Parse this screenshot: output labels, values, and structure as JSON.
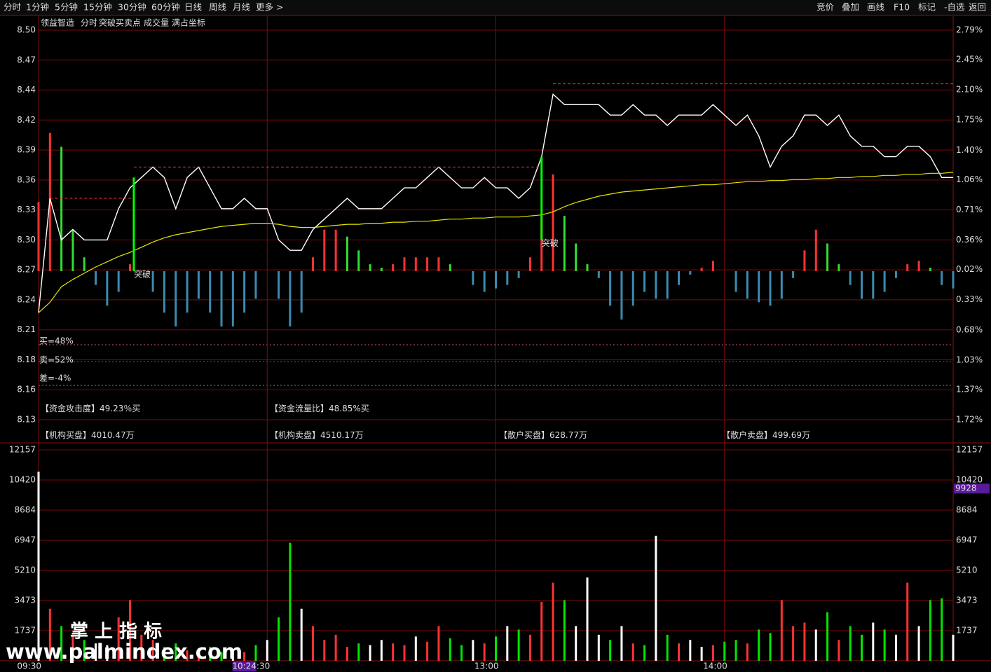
{
  "toolbar": {
    "left": [
      "分时",
      "1分钟",
      "5分钟",
      "15分钟",
      "30分钟",
      "60分钟",
      "日线",
      "周线",
      "月线",
      "更多 >"
    ],
    "right": [
      "竞价",
      "叠加",
      "画线",
      "F10",
      "标记",
      "-自选",
      "返回"
    ]
  },
  "header": {
    "stock": "领益智造",
    "items": [
      "突破买卖点",
      "成交量",
      "满占坐标"
    ]
  },
  "stats": [
    "买=48%",
    "卖=52%",
    "差=-4%"
  ],
  "info": [
    {
      "label": "【资金攻击度】",
      "value": "49.23％买",
      "color": "#33e0e0"
    },
    {
      "label": "【资金流量比】",
      "value": "48.85%买",
      "color": "#33e0e0"
    },
    {
      "label": "【机构买盘】",
      "value": "4010.47万",
      "color": "#ff3232"
    },
    {
      "label": "【机构卖盘】",
      "value": "4510.17万",
      "color": "#33dd33"
    },
    {
      "label": "【散户买盘】",
      "value": "628.77万",
      "color": "#ff3232"
    },
    {
      "label": "【散户卖盘】",
      "value": "499.69万",
      "color": "#33dd33"
    }
  ],
  "watermark": [
    "掌 上 指 标",
    "www.palmindex.com"
  ],
  "chart_data": [
    {
      "type": "line",
      "x": [
        "09:30",
        "09:33",
        "09:36",
        "09:39",
        "09:42",
        "09:45",
        "09:48",
        "09:51",
        "09:54",
        "09:57",
        "10:00",
        "10:03",
        "10:06",
        "10:09",
        "10:12",
        "10:15",
        "10:18",
        "10:21",
        "10:24",
        "10:27",
        "10:30",
        "10:33",
        "10:36",
        "10:39",
        "10:42",
        "10:45",
        "10:48",
        "10:51",
        "10:54",
        "10:57",
        "11:00",
        "11:03",
        "11:06",
        "11:09",
        "11:12",
        "11:15",
        "11:18",
        "11:21",
        "11:24",
        "11:27",
        "11:30",
        "13:03",
        "13:06",
        "13:09",
        "13:12",
        "13:15",
        "13:18",
        "13:21",
        "13:24",
        "13:27",
        "13:30",
        "13:33",
        "13:36",
        "13:39",
        "13:42",
        "13:45",
        "13:48",
        "13:51",
        "13:54",
        "13:57",
        "14:00",
        "14:03",
        "14:06",
        "14:09",
        "14:12",
        "14:15",
        "14:18",
        "14:21",
        "14:24",
        "14:27",
        "14:30",
        "14:33",
        "14:36",
        "14:39",
        "14:42",
        "14:45",
        "14:48",
        "14:51",
        "14:54",
        "14:57",
        "15:00"
      ],
      "series": [
        {
          "name": "分时",
          "color": "#ffffff",
          "values": [
            8.23,
            8.34,
            8.3,
            8.31,
            8.3,
            8.3,
            8.3,
            8.33,
            8.35,
            8.36,
            8.37,
            8.36,
            8.33,
            8.36,
            8.37,
            8.35,
            8.33,
            8.33,
            8.34,
            8.33,
            8.33,
            8.3,
            8.29,
            8.29,
            8.31,
            8.32,
            8.33,
            8.34,
            8.33,
            8.33,
            8.33,
            8.34,
            8.35,
            8.35,
            8.36,
            8.37,
            8.36,
            8.35,
            8.35,
            8.36,
            8.35,
            8.35,
            8.34,
            8.35,
            8.38,
            8.44,
            8.43,
            8.43,
            8.43,
            8.43,
            8.42,
            8.42,
            8.43,
            8.42,
            8.42,
            8.41,
            8.42,
            8.42,
            8.42,
            8.43,
            8.42,
            8.41,
            8.42,
            8.4,
            8.37,
            8.39,
            8.4,
            8.42,
            8.42,
            8.41,
            8.42,
            8.4,
            8.39,
            8.39,
            8.38,
            8.38,
            8.39,
            8.39,
            8.38,
            8.36,
            8.36
          ]
        },
        {
          "color": "#e6e600",
          "values": [
            8.23,
            8.24,
            8.255,
            8.262,
            8.268,
            8.274,
            8.279,
            8.284,
            8.288,
            8.293,
            8.298,
            8.302,
            8.305,
            8.307,
            8.309,
            8.311,
            8.313,
            8.314,
            8.315,
            8.316,
            8.316,
            8.315,
            8.313,
            8.312,
            8.312,
            8.313,
            8.314,
            8.315,
            8.315,
            8.316,
            8.316,
            8.317,
            8.317,
            8.318,
            8.318,
            8.319,
            8.32,
            8.32,
            8.321,
            8.321,
            8.322,
            8.322,
            8.322,
            8.323,
            8.324,
            8.327,
            8.332,
            8.336,
            8.339,
            8.342,
            8.344,
            8.346,
            8.347,
            8.348,
            8.349,
            8.35,
            8.351,
            8.352,
            8.353,
            8.353,
            8.354,
            8.355,
            8.356,
            8.356,
            8.357,
            8.357,
            8.358,
            8.358,
            8.359,
            8.359,
            8.36,
            8.36,
            8.361,
            8.361,
            8.362,
            8.362,
            8.363,
            8.363,
            8.364,
            8.364,
            8.365
          ]
        },
        {
          "type": "bar",
          "axis": "y2",
          "values": [
            0.8,
            1.6,
            1.44,
            0.48,
            0.16,
            -0.16,
            -0.4,
            -0.24,
            0.08,
            0,
            -0.24,
            -0.48,
            -0.64,
            -0.48,
            -0.32,
            -0.48,
            -0.64,
            -0.64,
            -0.48,
            -0.32,
            0,
            -0.32,
            -0.64,
            -0.48,
            0.16,
            0.48,
            0.48,
            0.4,
            0.24,
            0.08,
            0.04,
            0.08,
            0.16,
            0.16,
            0.16,
            0.16,
            0.08,
            0,
            -0.16,
            -0.24,
            -0.2,
            -0.16,
            -0.08,
            0.16,
            0.64,
            1.12,
            0.64,
            0.32,
            0.08,
            -0.08,
            -0.4,
            -0.56,
            -0.4,
            -0.24,
            -0.32,
            -0.32,
            -0.16,
            -0.04,
            0.04,
            0.12,
            0,
            -0.24,
            -0.32,
            -0.36,
            -0.4,
            -0.32,
            -0.08,
            0.24,
            0.48,
            0.32,
            0.08,
            -0.16,
            -0.32,
            -0.32,
            -0.24,
            -0.08,
            0.08,
            0.12,
            0.04,
            -0.16,
            -0.2
          ]
        }
      ],
      "ylim": [
        8.1272,
        8.5016
      ],
      "yticks": [
        {
          "value": 8.5016,
          "label": "8.50"
        },
        {
          "value": 8.4728,
          "label": "8.47"
        },
        {
          "value": 8.444,
          "label": "8.44"
        },
        {
          "value": 8.4152,
          "label": "8.42"
        },
        {
          "value": 8.3864,
          "label": "8.39"
        },
        {
          "value": 8.3576,
          "label": "8.36"
        },
        {
          "value": 8.3288,
          "label": "8.33"
        },
        {
          "value": 8.3,
          "label": "8.30"
        },
        {
          "value": 8.2712,
          "label": "8.27"
        },
        {
          "value": 8.2424,
          "label": "8.24"
        },
        {
          "value": 8.2136,
          "label": "8.21"
        },
        {
          "value": 8.1848,
          "label": "8.18"
        },
        {
          "value": 8.156,
          "label": "8.16"
        },
        {
          "value": 8.1272,
          "label": "8.13"
        }
      ],
      "y2lim": [
        -1.72,
        2.79
      ],
      "y2ticks": [
        {
          "value": 2.79,
          "label": "2.79%"
        },
        {
          "value": 2.45,
          "label": "2.45%"
        },
        {
          "value": 2.1,
          "label": "2.10%"
        },
        {
          "value": 1.75,
          "label": "1.75%"
        },
        {
          "value": 1.4,
          "label": "1.40%"
        },
        {
          "value": 1.06,
          "label": "1.06%"
        },
        {
          "value": 0.71,
          "label": "0.71%"
        },
        {
          "value": 0.36,
          "label": "0.36%"
        },
        {
          "value": 0.02,
          "label": "0.02%"
        },
        {
          "value": -0.33,
          "label": "0.33%"
        },
        {
          "value": -0.68,
          "label": "0.68%"
        },
        {
          "value": -1.03,
          "label": "1.03%"
        },
        {
          "value": -1.37,
          "label": "1.37%"
        },
        {
          "value": -1.72,
          "label": "1.72%"
        }
      ],
      "grid": true,
      "levels": [
        {
          "x": [
            "09:33",
            "09:55"
          ],
          "value": 8.34
        },
        {
          "x": [
            "09:55",
            "13:12"
          ],
          "value": 8.37
        },
        {
          "x": [
            "13:15",
            "15:00"
          ],
          "value": 8.45
        }
      ],
      "signals": [
        {
          "x": "09:55",
          "label": "突破",
          "values": [
            8.27,
            8.36
          ]
        },
        {
          "x": "13:12",
          "label": "突破",
          "values": [
            8.3,
            8.38
          ]
        }
      ]
    },
    {
      "type": "bar",
      "x": [
        "09:30",
        "09:33",
        "09:36",
        "09:39",
        "09:42",
        "09:45",
        "09:48",
        "09:51",
        "09:54",
        "09:57",
        "10:00",
        "10:03",
        "10:06",
        "10:09",
        "10:12",
        "10:15",
        "10:18",
        "10:21",
        "10:24",
        "10:27",
        "10:30",
        "10:33",
        "10:36",
        "10:39",
        "10:42",
        "10:45",
        "10:48",
        "10:51",
        "10:54",
        "10:57",
        "11:00",
        "11:03",
        "11:06",
        "11:09",
        "11:12",
        "11:15",
        "11:18",
        "11:21",
        "11:24",
        "11:27",
        "11:30",
        "13:03",
        "13:06",
        "13:09",
        "13:12",
        "13:15",
        "13:18",
        "13:21",
        "13:24",
        "13:27",
        "13:30",
        "13:33",
        "13:36",
        "13:39",
        "13:42",
        "13:45",
        "13:48",
        "13:51",
        "13:54",
        "13:57",
        "14:00",
        "14:03",
        "14:06",
        "14:09",
        "14:12",
        "14:15",
        "14:18",
        "14:21",
        "14:24",
        "14:27",
        "14:30",
        "14:33",
        "14:36",
        "14:39",
        "14:42",
        "14:45",
        "14:48",
        "14:51",
        "14:54",
        "14:57",
        "15:00"
      ],
      "values": [
        10900,
        3000,
        2000,
        1500,
        1200,
        1000,
        900,
        2500,
        3500,
        1500,
        1200,
        800,
        1000,
        600,
        700,
        800,
        500,
        600,
        500,
        900,
        1200,
        2500,
        6800,
        3000,
        2000,
        1200,
        1500,
        800,
        1000,
        900,
        1200,
        1000,
        900,
        1400,
        1100,
        2000,
        1300,
        900,
        1200,
        1000,
        1400,
        2000,
        1800,
        1500,
        3400,
        4500,
        3500,
        2000,
        4800,
        1500,
        1200,
        2000,
        1000,
        900,
        7200,
        1500,
        1000,
        1200,
        800,
        900,
        1100,
        1200,
        1000,
        1800,
        1600,
        3500,
        2000,
        2200,
        1800,
        2800,
        1200,
        2000,
        1500,
        2200,
        1800,
        1500,
        4500,
        2000,
        3500,
        3600,
        1500
      ],
      "ylim": [
        0,
        12157
      ],
      "yticks": [
        1737,
        3473,
        5210,
        6947,
        8684,
        10420,
        12157
      ],
      "xticks": [
        "09:30",
        "10:30",
        "13:00",
        "14:00"
      ],
      "grid": true,
      "cursor": {
        "time": "10:24",
        "value": 9928
      }
    }
  ]
}
